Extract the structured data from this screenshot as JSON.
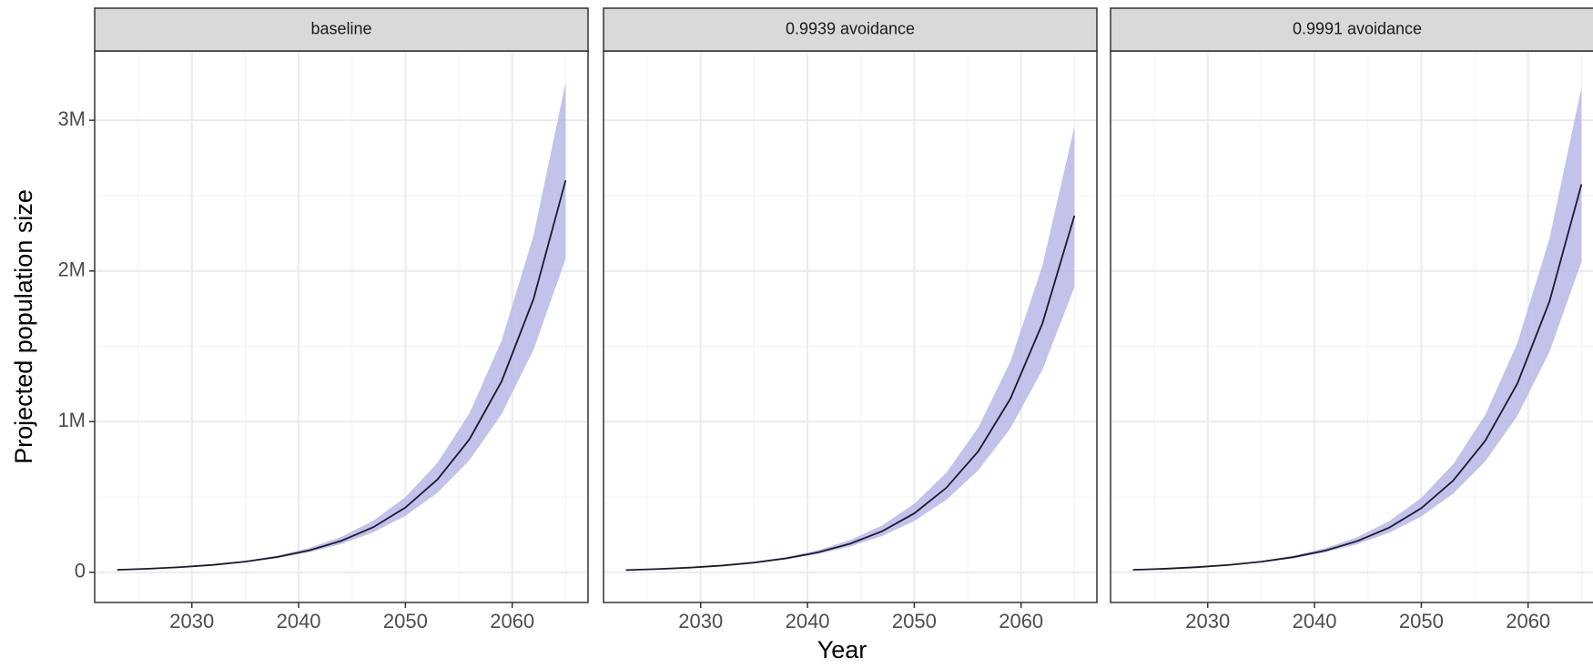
{
  "chart_data": [
    {
      "type": "line",
      "title": "baseline",
      "ylabel": "Projected  population size",
      "x": [
        2023,
        2026,
        2029,
        2032,
        2035,
        2038,
        2041,
        2044,
        2047,
        2050,
        2053,
        2056,
        2059,
        2062,
        2065
      ],
      "values": [
        16800,
        24100,
        34600,
        49600,
        71100,
        101900,
        146000,
        209300,
        300000,
        430000,
        616300,
        883400,
        1266200,
        1814900,
        2601300
      ],
      "lower": [
        16800,
        23800,
        33600,
        47500,
        67000,
        94600,
        133500,
        188400,
        265800,
        374600,
        528300,
        744700,
        1049400,
        1477400,
        2081000
      ],
      "upper": [
        16800,
        24500,
        35800,
        52300,
        76200,
        111000,
        161600,
        235500,
        342900,
        499200,
        726700,
        1056600,
        1537300,
        2236100,
        3251600
      ],
      "color": "#1a1a2e",
      "band_color": "#b3b3e6",
      "xlim": [
        2020.9,
        2067.1
      ],
      "xticks": [
        2030,
        2040,
        2050,
        2060
      ],
      "x_minor_grid": [
        2025,
        2035,
        2045,
        2055,
        2065
      ],
      "ylim": [
        -200000,
        3460000
      ],
      "yticks": [
        0,
        {
          "value": 1000000,
          "label": "1M"
        },
        {
          "value": 2000000,
          "label": "2M"
        },
        {
          "value": 3000000,
          "label": "3M"
        }
      ],
      "y_minor_grid": [
        500000,
        1500000,
        2500000
      ],
      "grid": true
    },
    {
      "type": "line",
      "title": "0.9939 avoidance",
      "xlabel": "Year",
      "x": [
        2023,
        2026,
        2029,
        2032,
        2035,
        2038,
        2041,
        2044,
        2047,
        2050,
        2053,
        2056,
        2059,
        2062,
        2065
      ],
      "values": [
        15300,
        21900,
        31500,
        45100,
        64700,
        92700,
        132900,
        190500,
        273000,
        391300,
        560800,
        803900,
        1152200,
        1651600,
        2367200
      ],
      "lower": [
        15300,
        21700,
        30600,
        43200,
        61000,
        86100,
        121500,
        171400,
        241900,
        340900,
        480800,
        677700,
        955000,
        1344400,
        1893700
      ],
      "upper": [
        15300,
        22300,
        32600,
        47600,
        69300,
        101000,
        147100,
        214300,
        312000,
        454300,
        661300,
        961500,
        1398900,
        2034800,
        2958900
      ],
      "color": "#1a1a2e",
      "band_color": "#b3b3e6",
      "xlim": [
        2020.9,
        2067.1
      ],
      "xticks": [
        2030,
        2040,
        2050,
        2060
      ],
      "x_minor_grid": [
        2025,
        2035,
        2045,
        2055,
        2065
      ],
      "ylim": [
        -200000,
        3460000
      ],
      "yticks": [
        0,
        1000000,
        2000000,
        3000000
      ],
      "y_minor_grid": [
        500000,
        1500000,
        2500000
      ],
      "grid": true
    },
    {
      "type": "line",
      "title": "0.9991 avoidance",
      "x": [
        2023,
        2026,
        2029,
        2032,
        2035,
        2038,
        2041,
        2044,
        2047,
        2050,
        2053,
        2056,
        2059,
        2062,
        2065
      ],
      "values": [
        16600,
        23900,
        34300,
        49100,
        70400,
        100900,
        144500,
        207200,
        297000,
        425700,
        610100,
        874600,
        1253500,
        1796800,
        2575300
      ],
      "lower": [
        16600,
        23600,
        33300,
        47000,
        66300,
        93700,
        132200,
        186500,
        263100,
        370900,
        523000,
        737300,
        1038900,
        1462600,
        2060200
      ],
      "upper": [
        16600,
        24300,
        35400,
        51800,
        75400,
        109900,
        160000,
        233100,
        339500,
        494200,
        719400,
        1046000,
        1521900,
        2213700,
        3219100
      ],
      "color": "#1a1a2e",
      "band_color": "#b3b3e6",
      "xlim": [
        2020.9,
        2067.1
      ],
      "xticks": [
        2030,
        2040,
        2050,
        2060
      ],
      "x_minor_grid": [
        2025,
        2035,
        2045,
        2055,
        2065
      ],
      "ylim": [
        -200000,
        3460000
      ],
      "yticks": [
        0,
        1000000,
        2000000,
        3000000
      ],
      "y_minor_grid": [
        500000,
        1500000,
        2500000
      ],
      "grid": true
    }
  ]
}
